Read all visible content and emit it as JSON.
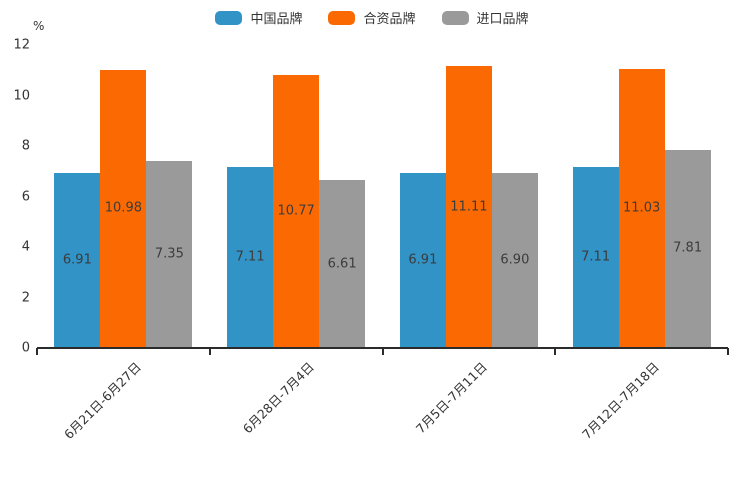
{
  "chart_data": {
    "type": "bar",
    "title": "",
    "unit_label": "%",
    "categories": [
      "6月21日-6月27日",
      "6月28日-7月4日",
      "7月5日-7月11日",
      "7月12日-7月18日"
    ],
    "series": [
      {
        "name": "中国品牌",
        "color": "#3193C6",
        "values": [
          6.91,
          7.11,
          6.91,
          7.11
        ]
      },
      {
        "name": "合资品牌",
        "color": "#FB6A02",
        "values": [
          10.98,
          10.77,
          11.11,
          11.03
        ]
      },
      {
        "name": "进口品牌",
        "color": "#9A9A9A",
        "values": [
          7.35,
          6.61,
          6.9,
          7.81
        ]
      }
    ],
    "value_label_format": "2-decimals",
    "value_label_position": "center",
    "ylim": [
      0,
      12
    ],
    "yticks": [
      0,
      2,
      4,
      6,
      8,
      10,
      12
    ],
    "grid": false,
    "legend_position": "top"
  },
  "colors": {
    "background": "#ffffff",
    "axis": "#2b2b2b",
    "tick_text": "#333333",
    "value_label_text": "#3c3c3c"
  }
}
